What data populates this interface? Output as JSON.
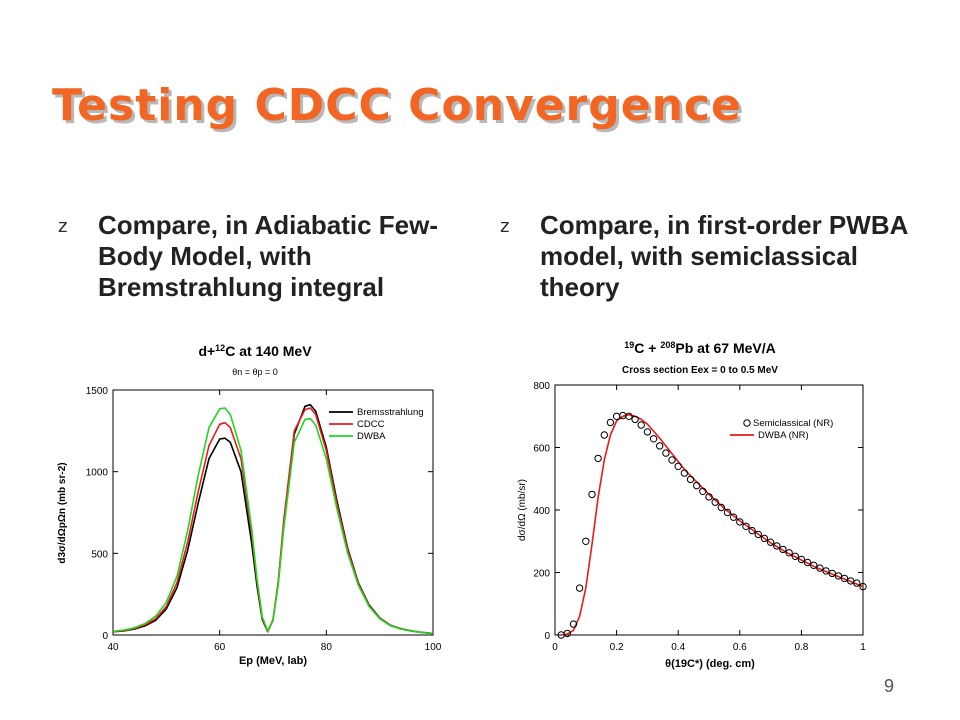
{
  "slide": {
    "title": "Testing CDCC Convergence",
    "page_number": "9",
    "title_color": "#f26522",
    "bullet_icon": "z",
    "bullets": [
      "Compare, in Adiabatic Few-Body Model, with Bremstrahlung integral",
      "Compare, in first-order PWBA model, with semiclassical theory"
    ]
  },
  "chart_data": [
    {
      "type": "line",
      "title": "d+12C at 140 MeV",
      "title_parts": {
        "pre": "d+",
        "sup": "12",
        "post": "C at 140 MeV"
      },
      "subtitle": "θn = θp = 0",
      "xlabel": "Ep (MeV, lab)",
      "ylabel": "d3σ/dΩpΩn (mb sr-2)",
      "xlim": [
        40,
        100
      ],
      "ylim": [
        0,
        1500
      ],
      "xticks": [
        "40",
        "60",
        "80",
        "100"
      ],
      "yticks": [
        "0",
        "500",
        "1000",
        "1500"
      ],
      "legend_position": "top-right",
      "grid": false,
      "x": [
        40,
        42,
        44,
        46,
        48,
        50,
        52,
        54,
        56,
        58,
        60,
        61,
        62,
        64,
        66,
        67,
        68,
        69,
        70,
        71,
        72,
        74,
        76,
        77,
        78,
        80,
        82,
        84,
        86,
        88,
        90,
        92,
        94,
        96,
        98,
        100
      ],
      "series": [
        {
          "name": "Bremsstrahlung",
          "color": "#000000",
          "values": [
            20,
            25,
            36,
            56,
            90,
            160,
            290,
            520,
            810,
            1080,
            1200,
            1205,
            1180,
            1000,
            560,
            300,
            95,
            20,
            90,
            320,
            680,
            1230,
            1400,
            1410,
            1370,
            1150,
            820,
            530,
            320,
            185,
            105,
            60,
            38,
            25,
            16,
            10
          ]
        },
        {
          "name": "CDCC",
          "color": "#e81a1a",
          "values": [
            20,
            27,
            40,
            62,
            100,
            175,
            320,
            570,
            880,
            1160,
            1290,
            1300,
            1270,
            1080,
            620,
            330,
            105,
            22,
            95,
            330,
            700,
            1250,
            1380,
            1390,
            1350,
            1130,
            800,
            520,
            315,
            180,
            102,
            58,
            37,
            24,
            15,
            10
          ]
        },
        {
          "name": "DWBA",
          "color": "#22d622",
          "values": [
            22,
            30,
            44,
            70,
            115,
            200,
            360,
            640,
            980,
            1270,
            1385,
            1390,
            1350,
            1130,
            650,
            345,
            110,
            25,
            90,
            310,
            650,
            1180,
            1320,
            1325,
            1285,
            1080,
            770,
            500,
            305,
            175,
            100,
            57,
            36,
            23,
            15,
            10
          ]
        }
      ]
    },
    {
      "type": "line",
      "title": "19C + 208Pb at 67 MeV/A",
      "title_parts": {
        "sup1": "19",
        "mid": "C + ",
        "sup2": "208",
        "post": "Pb at 67 MeV/A"
      },
      "subtitle": "Cross section Eex = 0 to 0.5 MeV",
      "xlabel": "θ(19C*) (deg. cm)",
      "ylabel": "dσ/dΩ (mb/sr)",
      "xlim": [
        0,
        1
      ],
      "ylim": [
        0,
        800
      ],
      "xticks": [
        "0",
        "0.2",
        "0.4",
        "0.6",
        "0.8",
        "1"
      ],
      "yticks": [
        "0",
        "200",
        "400",
        "600",
        "800"
      ],
      "legend_position": "top-right",
      "grid": false,
      "series": [
        {
          "name": "DWBA (NR)",
          "color": "#e81a1a",
          "style": "line",
          "x": [
            0.02,
            0.04,
            0.06,
            0.08,
            0.1,
            0.12,
            0.14,
            0.16,
            0.18,
            0.2,
            0.22,
            0.24,
            0.26,
            0.28,
            0.3,
            0.34,
            0.38,
            0.42,
            0.46,
            0.5,
            0.55,
            0.6,
            0.65,
            0.7,
            0.75,
            0.8,
            0.85,
            0.9,
            0.95,
            1.0
          ],
          "values": [
            0,
            3,
            15,
            60,
            150,
            290,
            440,
            560,
            640,
            685,
            700,
            705,
            700,
            690,
            675,
            630,
            580,
            530,
            490,
            450,
            405,
            365,
            330,
            295,
            265,
            240,
            215,
            195,
            175,
            155
          ]
        },
        {
          "name": "Semiclassical (NR)",
          "color": "#000000",
          "style": "markers",
          "x": [
            0.02,
            0.04,
            0.06,
            0.08,
            0.1,
            0.12,
            0.14,
            0.16,
            0.18,
            0.2,
            0.22,
            0.24,
            0.26,
            0.28,
            0.3,
            0.32,
            0.34,
            0.36,
            0.38,
            0.4,
            0.42,
            0.44,
            0.46,
            0.48,
            0.5,
            0.52,
            0.54,
            0.56,
            0.58,
            0.6,
            0.62,
            0.64,
            0.66,
            0.68,
            0.7,
            0.72,
            0.74,
            0.76,
            0.78,
            0.8,
            0.82,
            0.84,
            0.86,
            0.88,
            0.9,
            0.92,
            0.94,
            0.96,
            0.98,
            1.0
          ],
          "values": [
            0,
            5,
            35,
            150,
            300,
            450,
            565,
            640,
            680,
            700,
            702,
            700,
            690,
            672,
            650,
            628,
            605,
            582,
            560,
            540,
            518,
            498,
            478,
            460,
            442,
            425,
            408,
            392,
            377,
            362,
            348,
            334,
            322,
            309,
            297,
            285,
            274,
            263,
            252,
            242,
            232,
            223,
            214,
            205,
            197,
            189,
            181,
            173,
            166,
            155
          ]
        }
      ]
    }
  ]
}
